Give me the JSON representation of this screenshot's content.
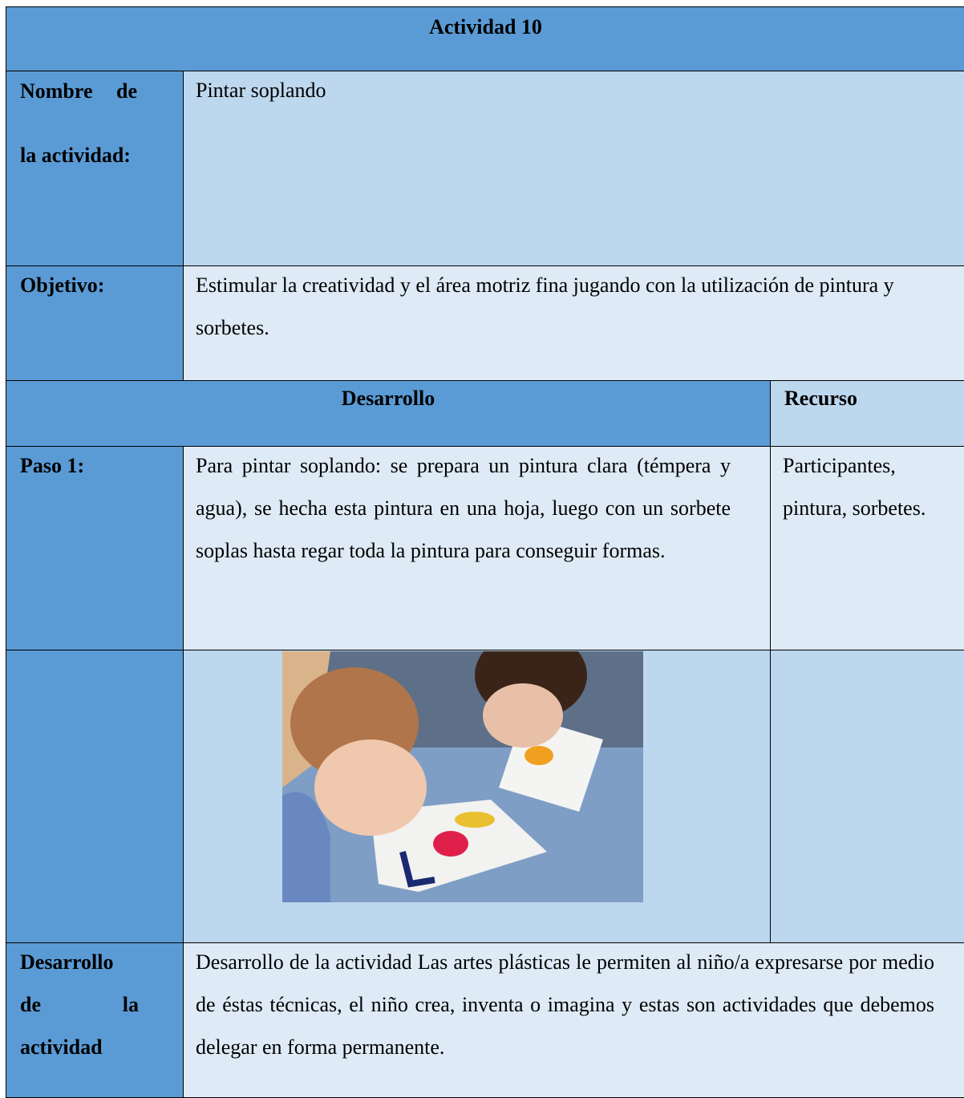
{
  "table": {
    "title": "Actividad 10",
    "name": {
      "label": "Nombre de la actividad:",
      "value": "Pintar soplando"
    },
    "objective": {
      "label": "Objetivo:",
      "value": "Estimular la creatividad y el área motriz fina jugando con la utilización de pintura y sorbetes."
    },
    "headers": {
      "development": "Desarrollo",
      "resource": "Recurso"
    },
    "step": {
      "label": "Paso 1:",
      "text": "Para pintar soplando: se prepara un pintura clara (témpera y agua), se hecha esta pintura en una hoja, luego con un sorbete soplas hasta regar toda la pintura para conseguir formas.",
      "resource": "Participantes, pintura, sorbetes."
    },
    "activity": {
      "label": "Desarrollo de la actividad",
      "text": "Desarrollo de la actividad Las artes plásticas le permiten al niño/a expresarse por medio de éstas técnicas, el niño crea, inventa o imagina y estas son actividades que debemos delegar en forma permanente."
    }
  }
}
